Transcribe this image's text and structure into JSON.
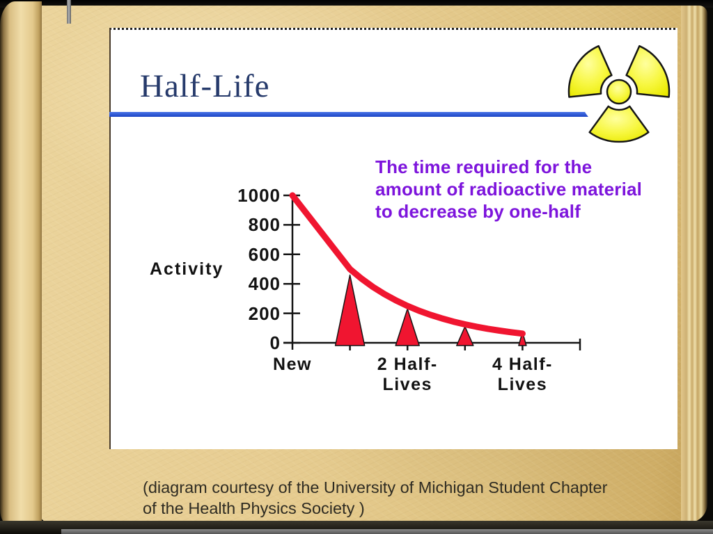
{
  "slide": {
    "title": "Half-Life",
    "definition_lines": [
      "The time required for the",
      "amount of radioactive material",
      "to decrease by one-half"
    ]
  },
  "page": {
    "caption_line1": "(diagram courtesy of the University of Michigan Student Chapter",
    "caption_line2": "of the Health Physics Society )"
  },
  "chart_data": {
    "type": "line",
    "title": "",
    "xlabel": "",
    "ylabel": "Activity",
    "ylim": [
      0,
      1000
    ],
    "grid": false,
    "legend": "none",
    "y_ticks": [
      "1000",
      "800",
      "600",
      "400",
      "200",
      "0"
    ],
    "x_tick_labels": [
      "New",
      "",
      "2 Half-\nLives",
      "",
      "4 Half-\nLives",
      ""
    ],
    "series": [
      {
        "name": "Activity decay curve",
        "x": [
          0,
          1,
          2,
          3,
          4
        ],
        "values": [
          1000,
          500,
          250,
          125,
          62
        ]
      }
    ],
    "triangle_markers": [
      {
        "x": 1,
        "value": 460
      },
      {
        "x": 2,
        "value": 230
      },
      {
        "x": 3,
        "value": 110
      },
      {
        "x": 4,
        "value": 72
      }
    ],
    "annotation": "The time required for the amount of radioactive material to decrease by one-half",
    "curve_color": "#F01530",
    "axis_color": "#141414"
  },
  "icons": {
    "radiation_trefoil": "radiation-trefoil-icon"
  },
  "colors": {
    "title_navy": "#263A6B",
    "rule_blue": "#2050D0",
    "definition_purple": "#7D14DC",
    "chart_red": "#F01530",
    "trefoil_yellow": "#F5F52E",
    "page_tan": "#E7CD92",
    "slide_bg": "#FFFFFF",
    "caption_text": "#2E2B22"
  }
}
